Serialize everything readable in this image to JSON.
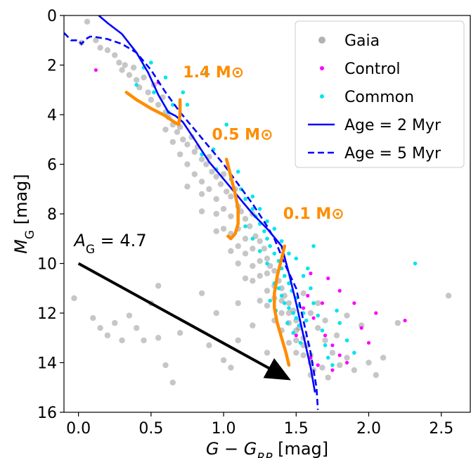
{
  "chart_data": {
    "type": "scatter",
    "xlabel": "G − G_RP [mag]",
    "xlabel_main": "G − G",
    "xlabel_sub": "RP",
    "xlabel_unit": " [mag]",
    "ylabel_main": "M",
    "ylabel_sub": "G",
    "ylabel_unit": " [mag]",
    "xlim": [
      -0.1,
      2.7
    ],
    "ylim": [
      16,
      0
    ],
    "x_ticks": [
      0.0,
      0.5,
      1.0,
      1.5,
      2.0,
      2.5
    ],
    "x_tick_labels": [
      "0.0",
      "0.5",
      "1.0",
      "1.5",
      "2.0",
      "2.5"
    ],
    "y_ticks": [
      0,
      2,
      4,
      6,
      8,
      10,
      12,
      14,
      16
    ],
    "y_tick_labels": [
      "0",
      "2",
      "4",
      "6",
      "8",
      "10",
      "12",
      "14",
      "16"
    ],
    "grid": false,
    "legend_position": "top-right",
    "legend": [
      {
        "label": "Gaia",
        "kind": "marker",
        "color": "#7f7f7f"
      },
      {
        "label": "Control",
        "kind": "marker",
        "color": "#ff00ff"
      },
      {
        "label": "Common",
        "kind": "marker",
        "color": "#00e5ee"
      },
      {
        "label": "Age = 2 Myr",
        "kind": "solid",
        "color": "#0000ff"
      },
      {
        "label": "Age = 5 Myr",
        "kind": "dashed",
        "color": "#0000ff"
      }
    ],
    "colors": {
      "gaia": "#808080",
      "control": "#ff00ff",
      "common": "#00e5ee",
      "isochrone": "#0000ff",
      "track": "#ff8c00",
      "arrow": "#000000"
    },
    "isochrones": [
      {
        "name": "Age = 2 Myr",
        "style": "solid",
        "x": [
          0.14,
          0.2,
          0.3,
          0.4,
          0.48,
          0.55,
          0.62,
          0.67,
          0.72,
          0.8,
          0.9,
          1.0,
          1.1,
          1.2,
          1.3,
          1.4,
          1.45,
          1.5,
          1.55,
          1.6,
          1.63
        ],
        "y": [
          0.0,
          0.3,
          0.75,
          1.5,
          2.3,
          3.2,
          3.9,
          4.05,
          4.3,
          5.0,
          5.9,
          6.6,
          7.3,
          8.0,
          8.6,
          9.3,
          10.4,
          11.6,
          12.9,
          14.2,
          15.2
        ]
      },
      {
        "name": "Age = 5 Myr",
        "style": "dashed",
        "x": [
          -0.1,
          -0.05,
          0.0,
          0.02,
          0.05,
          0.08,
          0.1,
          0.2,
          0.3,
          0.4,
          0.5,
          0.6,
          0.7,
          0.8,
          0.9,
          1.0,
          1.1,
          1.2,
          1.3,
          1.35,
          1.42,
          1.5,
          1.55,
          1.6,
          1.64,
          1.65
        ],
        "y": [
          0.7,
          1.0,
          1.0,
          1.15,
          0.95,
          0.85,
          0.85,
          0.95,
          1.15,
          1.5,
          2.2,
          3.1,
          3.9,
          4.6,
          5.3,
          6.0,
          6.8,
          7.6,
          8.5,
          9.0,
          10.0,
          11.0,
          12.3,
          13.6,
          15.0,
          15.9
        ]
      }
    ],
    "mass_tracks": [
      {
        "label": "1.4 M⊙",
        "label_at": [
          0.72,
          2.5
        ],
        "x": [
          0.33,
          0.4,
          0.5,
          0.6,
          0.66,
          0.69,
          0.7,
          0.7
        ],
        "y": [
          3.1,
          3.4,
          3.75,
          4.05,
          4.3,
          4.4,
          4.0,
          3.4
        ]
      },
      {
        "label": "0.5 M⊙",
        "label_at": [
          0.92,
          5.0
        ],
        "x": [
          1.02,
          1.05,
          1.08,
          1.1,
          1.1,
          1.08,
          1.05,
          1.03
        ],
        "y": [
          5.8,
          6.5,
          7.2,
          7.8,
          8.4,
          8.8,
          9.0,
          8.9
        ]
      },
      {
        "label": "0.1 M⊙",
        "label_at": [
          1.41,
          8.2
        ],
        "x": [
          1.42,
          1.4,
          1.37,
          1.35,
          1.35,
          1.37,
          1.4,
          1.43,
          1.45
        ],
        "y": [
          9.3,
          9.8,
          10.5,
          11.2,
          11.8,
          12.4,
          13.0,
          13.6,
          14.1
        ]
      }
    ],
    "extinction_arrow": {
      "label_main": "A",
      "label_sub": "G",
      "label_value": " = 4.7",
      "label_at": [
        -0.03,
        9.3
      ],
      "from": [
        0.0,
        10.0
      ],
      "to": [
        1.43,
        14.6
      ]
    },
    "series": [
      {
        "name": "Gaia",
        "points": [
          [
            0.02,
            1.1
          ],
          [
            0.06,
            0.25
          ],
          [
            0.12,
            1.0
          ],
          [
            0.15,
            1.3
          ],
          [
            0.2,
            1.4
          ],
          [
            0.25,
            1.6
          ],
          [
            0.28,
            1.9
          ],
          [
            0.3,
            2.2
          ],
          [
            0.32,
            2.0
          ],
          [
            0.35,
            2.4
          ],
          [
            0.38,
            2.1
          ],
          [
            0.4,
            2.6
          ],
          [
            0.42,
            2.9
          ],
          [
            0.45,
            2.5
          ],
          [
            0.48,
            3.1
          ],
          [
            0.5,
            3.4
          ],
          [
            0.52,
            2.8
          ],
          [
            0.55,
            3.6
          ],
          [
            0.58,
            3.3
          ],
          [
            0.6,
            3.9
          ],
          [
            0.62,
            4.1
          ],
          [
            0.65,
            4.4
          ],
          [
            0.68,
            4.7
          ],
          [
            0.7,
            4.5
          ],
          [
            0.72,
            5.0
          ],
          [
            0.75,
            5.2
          ],
          [
            0.78,
            4.9
          ],
          [
            0.8,
            5.5
          ],
          [
            0.82,
            5.3
          ],
          [
            0.85,
            5.8
          ],
          [
            0.88,
            6.0
          ],
          [
            0.9,
            5.7
          ],
          [
            0.92,
            6.3
          ],
          [
            0.95,
            6.5
          ],
          [
            0.98,
            6.8
          ],
          [
            1.0,
            6.4
          ],
          [
            1.02,
            7.1
          ],
          [
            1.05,
            7.3
          ],
          [
            1.08,
            7.0
          ],
          [
            1.1,
            7.7
          ],
          [
            1.12,
            7.9
          ],
          [
            1.15,
            8.2
          ],
          [
            1.18,
            8.5
          ],
          [
            1.2,
            8.0
          ],
          [
            1.22,
            8.9
          ],
          [
            1.25,
            9.1
          ],
          [
            1.28,
            9.4
          ],
          [
            1.3,
            9.8
          ],
          [
            1.32,
            10.1
          ],
          [
            1.35,
            10.3
          ],
          [
            1.38,
            10.7
          ],
          [
            1.4,
            11.0
          ],
          [
            1.42,
            11.3
          ],
          [
            1.45,
            11.6
          ],
          [
            1.48,
            11.9
          ],
          [
            1.5,
            12.3
          ],
          [
            1.52,
            12.6
          ],
          [
            1.55,
            13.0
          ],
          [
            1.58,
            13.3
          ],
          [
            1.6,
            13.7
          ],
          [
            0.7,
            5.6
          ],
          [
            0.75,
            6.0
          ],
          [
            0.8,
            6.4
          ],
          [
            0.85,
            6.7
          ],
          [
            0.9,
            7.0
          ],
          [
            0.95,
            7.4
          ],
          [
            1.0,
            7.8
          ],
          [
            1.05,
            8.1
          ],
          [
            1.1,
            8.6
          ],
          [
            1.15,
            9.0
          ],
          [
            1.2,
            9.4
          ],
          [
            1.25,
            9.9
          ],
          [
            1.3,
            10.4
          ],
          [
            1.35,
            10.9
          ],
          [
            1.4,
            11.5
          ],
          [
            1.45,
            12.0
          ],
          [
            1.5,
            12.7
          ],
          [
            1.55,
            13.3
          ],
          [
            1.6,
            14.0
          ],
          [
            1.62,
            14.3
          ],
          [
            0.6,
            4.6
          ],
          [
            0.65,
            5.1
          ],
          [
            0.85,
            7.2
          ],
          [
            0.95,
            8.0
          ],
          [
            1.05,
            8.8
          ],
          [
            1.15,
            9.6
          ],
          [
            1.25,
            10.5
          ],
          [
            1.35,
            11.4
          ],
          [
            1.45,
            12.4
          ],
          [
            1.55,
            13.7
          ],
          [
            1.0,
            8.6
          ],
          [
            1.1,
            9.3
          ],
          [
            1.2,
            10.1
          ],
          [
            1.3,
            11.1
          ],
          [
            1.4,
            12.0
          ],
          [
            1.5,
            13.1
          ],
          [
            1.6,
            14.5
          ],
          [
            1.1,
            10.0
          ],
          [
            1.2,
            10.7
          ],
          [
            1.3,
            11.7
          ],
          [
            1.4,
            12.7
          ],
          [
            1.5,
            13.6
          ],
          [
            1.35,
            12.3
          ],
          [
            1.45,
            13.2
          ],
          [
            1.25,
            11.5
          ],
          [
            1.15,
            10.6
          ],
          [
            1.05,
            9.5
          ],
          [
            0.95,
            8.7
          ],
          [
            0.85,
            7.9
          ],
          [
            0.75,
            6.9
          ],
          [
            1.65,
            12.6
          ],
          [
            1.7,
            13.1
          ],
          [
            1.75,
            13.6
          ],
          [
            1.8,
            14.1
          ],
          [
            1.68,
            14.2
          ],
          [
            1.72,
            14.6
          ],
          [
            1.6,
            12.0
          ],
          [
            1.55,
            11.2
          ],
          [
            1.65,
            11.6
          ],
          [
            1.7,
            12.3
          ],
          [
            1.78,
            12.9
          ],
          [
            1.85,
            13.8
          ],
          [
            1.9,
            14.3
          ],
          [
            2.0,
            14.0
          ],
          [
            2.05,
            14.5
          ],
          [
            1.95,
            12.5
          ],
          [
            1.85,
            12.1
          ],
          [
            1.2,
            12.5
          ],
          [
            1.1,
            13.1
          ],
          [
            1.0,
            13.9
          ],
          [
            1.05,
            14.2
          ],
          [
            1.3,
            13.6
          ],
          [
            0.9,
            13.3
          ],
          [
            0.4,
            12.6
          ],
          [
            0.45,
            13.1
          ],
          [
            0.35,
            12.1
          ],
          [
            0.55,
            13.0
          ],
          [
            0.25,
            12.4
          ],
          [
            0.2,
            12.9
          ],
          [
            0.1,
            12.2
          ],
          [
            0.15,
            12.6
          ],
          [
            0.3,
            13.1
          ],
          [
            0.6,
            14.1
          ],
          [
            0.65,
            14.8
          ],
          [
            0.5,
            11.6
          ],
          [
            -0.03,
            11.4
          ],
          [
            2.55,
            11.3
          ],
          [
            2.2,
            12.4
          ],
          [
            2.1,
            13.8
          ],
          [
            0.55,
            10.9
          ],
          [
            0.85,
            11.2
          ],
          [
            1.1,
            11.6
          ],
          [
            0.7,
            12.8
          ],
          [
            0.95,
            12.0
          ]
        ]
      },
      {
        "name": "Control",
        "points": [
          [
            0.12,
            2.2
          ],
          [
            0.55,
            2.7
          ],
          [
            1.55,
            11.8
          ],
          [
            1.62,
            12.2
          ],
          [
            1.7,
            12.9
          ],
          [
            1.75,
            13.3
          ],
          [
            1.8,
            13.7
          ],
          [
            1.85,
            14.0
          ],
          [
            1.9,
            11.6
          ],
          [
            1.95,
            12.6
          ],
          [
            2.05,
            12.0
          ],
          [
            2.25,
            12.3
          ],
          [
            1.6,
            13.8
          ],
          [
            1.65,
            14.1
          ],
          [
            1.5,
            12.9
          ],
          [
            1.58,
            11.3
          ],
          [
            1.72,
            10.6
          ],
          [
            1.68,
            11.6
          ],
          [
            2.0,
            13.2
          ],
          [
            1.8,
            11.1
          ],
          [
            1.75,
            14.3
          ],
          [
            1.6,
            10.4
          ]
        ]
      },
      {
        "name": "Common",
        "points": [
          [
            0.45,
            2.1
          ],
          [
            0.5,
            1.9
          ],
          [
            0.52,
            3.1
          ],
          [
            0.6,
            2.5
          ],
          [
            0.65,
            3.6
          ],
          [
            0.72,
            3.1
          ],
          [
            0.75,
            3.6
          ],
          [
            0.88,
            2.3
          ],
          [
            0.93,
            5.4
          ],
          [
            1.02,
            4.4
          ],
          [
            1.05,
            6.6
          ],
          [
            1.1,
            6.3
          ],
          [
            1.12,
            7.0
          ],
          [
            1.15,
            7.4
          ],
          [
            1.2,
            7.8
          ],
          [
            1.22,
            8.1
          ],
          [
            1.25,
            8.4
          ],
          [
            1.28,
            8.7
          ],
          [
            1.3,
            9.0
          ],
          [
            1.32,
            9.3
          ],
          [
            1.35,
            9.6
          ],
          [
            1.38,
            9.9
          ],
          [
            1.4,
            10.2
          ],
          [
            1.42,
            10.5
          ],
          [
            1.45,
            10.8
          ],
          [
            1.47,
            11.1
          ],
          [
            1.5,
            11.4
          ],
          [
            1.52,
            11.7
          ],
          [
            1.55,
            12.0
          ],
          [
            1.57,
            12.3
          ],
          [
            1.35,
            10.8
          ],
          [
            1.4,
            11.3
          ],
          [
            1.45,
            11.8
          ],
          [
            1.5,
            12.2
          ],
          [
            1.3,
            10.0
          ],
          [
            1.25,
            9.5
          ],
          [
            1.2,
            9.0
          ],
          [
            1.15,
            8.5
          ],
          [
            1.38,
            11.0
          ],
          [
            1.42,
            11.6
          ],
          [
            1.48,
            12.0
          ],
          [
            1.52,
            12.5
          ],
          [
            1.55,
            10.5
          ],
          [
            1.6,
            11.0
          ],
          [
            1.62,
            11.6
          ],
          [
            1.65,
            12.1
          ],
          [
            1.68,
            12.7
          ],
          [
            1.7,
            13.3
          ],
          [
            1.72,
            13.8
          ],
          [
            1.75,
            14.1
          ],
          [
            1.58,
            10.2
          ],
          [
            1.5,
            9.8
          ],
          [
            1.45,
            9.6
          ],
          [
            1.62,
            9.3
          ],
          [
            1.4,
            9.1
          ],
          [
            1.35,
            8.6
          ],
          [
            1.3,
            8.3
          ],
          [
            1.25,
            7.8
          ],
          [
            1.2,
            7.3
          ],
          [
            1.85,
            13.1
          ],
          [
            1.9,
            13.6
          ],
          [
            2.32,
            10.0
          ],
          [
            0.95,
            6.2
          ],
          [
            0.85,
            5.6
          ],
          [
            0.62,
            3.9
          ],
          [
            0.4,
            2.8
          ],
          [
            1.8,
            12.4
          ],
          [
            1.78,
            11.9
          ],
          [
            1.53,
            13.2
          ],
          [
            1.48,
            12.8
          ],
          [
            1.44,
            12.4
          ],
          [
            1.36,
            11.9
          ],
          [
            1.32,
            11.5
          ]
        ]
      }
    ]
  }
}
